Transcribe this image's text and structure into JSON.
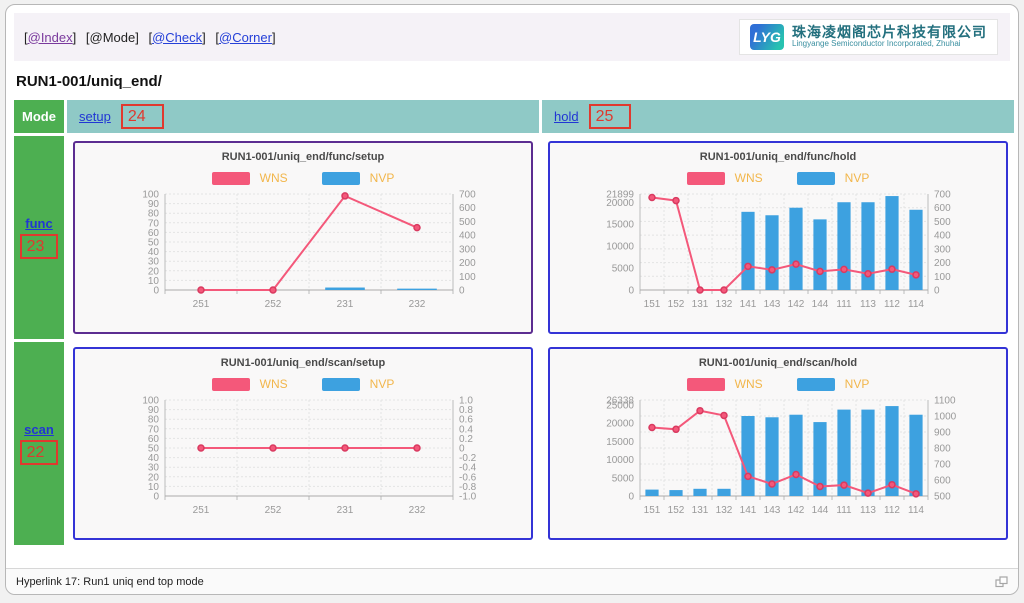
{
  "nav": {
    "bracket_open": "[",
    "bracket_close": "]",
    "items": [
      {
        "label": "@Index",
        "style": "visited"
      },
      {
        "label": "@Mode",
        "style": "plain"
      },
      {
        "label": "@Check",
        "style": "link"
      },
      {
        "label": "@Corner",
        "style": "link"
      }
    ]
  },
  "logo": {
    "abbr": "LYG",
    "company_cn": "珠海凌烟阁芯片科技有限公司",
    "company_en": "Lingyange Semiconductor Incorporated, Zhuhai"
  },
  "page_title": "RUN1-001/uniq_end/",
  "table": {
    "mode_header": "Mode",
    "columns": [
      {
        "label": "setup",
        "badge": "24"
      },
      {
        "label": "hold",
        "badge": "25"
      }
    ],
    "rows": [
      {
        "label": "func",
        "badge": "23"
      },
      {
        "label": "scan",
        "badge": "22"
      }
    ]
  },
  "colors": {
    "wns": "#f4587a",
    "wns_marker_stroke": "#d93a60",
    "nvp": "#3da1e0",
    "legend_text": "#f2b64b",
    "grid_line": "#e3e3e3",
    "axis_line": "#bbbbbb",
    "tick_text": "#999999",
    "border_purple": "#5c2d91",
    "border_blue": "#3434d6",
    "header_teal": "#8fc9c6",
    "cell_green": "#4daf51",
    "annotation_red": "#e0392e"
  },
  "chart_data": [
    {
      "type": "bar+line",
      "title": "RUN1-001/uniq_end/func/setup",
      "border_color": "#5c2d91",
      "categories": [
        "251",
        "252",
        "231",
        "232"
      ],
      "left_axis": {
        "min": 0,
        "max": 100,
        "tick_values": [
          0,
          10,
          20,
          30,
          40,
          50,
          60,
          70,
          80,
          90,
          100
        ],
        "tick_labels": [
          "0",
          "10",
          "20",
          "30",
          "40",
          "50",
          "60",
          "70",
          "80",
          "90",
          "100"
        ]
      },
      "right_axis": {
        "min": 0,
        "max": 700,
        "tick_values": [
          0,
          100,
          200,
          300,
          400,
          500,
          600,
          700
        ],
        "tick_labels": [
          "0",
          "100",
          "200",
          "300",
          "400",
          "500",
          "600",
          "700"
        ]
      },
      "grid_axis": "left",
      "series": [
        {
          "name": "WNS",
          "type": "line",
          "axis": "left",
          "values": [
            0,
            0,
            98,
            65
          ]
        },
        {
          "name": "NVP",
          "type": "bar",
          "axis": "right",
          "values": [
            0,
            0,
            18,
            10
          ]
        }
      ]
    },
    {
      "type": "bar+line",
      "title": "RUN1-001/uniq_end/func/hold",
      "border_color": "#3434d6",
      "categories": [
        "151",
        "152",
        "131",
        "132",
        "141",
        "143",
        "142",
        "144",
        "111",
        "113",
        "112",
        "114"
      ],
      "left_axis": {
        "min": 0,
        "max": 21899,
        "tick_values": [
          0,
          5000,
          10000,
          15000,
          20000,
          21899
        ],
        "tick_labels": [
          "0",
          "5000",
          "10000",
          "15000",
          "20000",
          "21899"
        ]
      },
      "right_axis": {
        "min": 0,
        "max": 700,
        "tick_values": [
          0,
          100,
          200,
          300,
          400,
          500,
          600,
          700
        ],
        "tick_labels": [
          "0",
          "100",
          "200",
          "300",
          "400",
          "500",
          "600",
          "700"
        ]
      },
      "grid_axis": "right",
      "series": [
        {
          "name": "WNS",
          "type": "line",
          "axis": "left",
          "values": [
            21100,
            20400,
            0,
            0,
            5400,
            4600,
            5900,
            4250,
            4700,
            3700,
            4750,
            3450
          ]
        },
        {
          "name": "NVP",
          "type": "bar",
          "axis": "right",
          "values": [
            0,
            0,
            0,
            0,
            570,
            545,
            600,
            515,
            640,
            640,
            685,
            585
          ]
        }
      ]
    },
    {
      "type": "bar+line",
      "title": "RUN1-001/uniq_end/scan/setup",
      "border_color": "#3434d6",
      "categories": [
        "251",
        "252",
        "231",
        "232"
      ],
      "left_axis": {
        "min": 0,
        "max": 100,
        "tick_values": [
          0,
          10,
          20,
          30,
          40,
          50,
          60,
          70,
          80,
          90,
          100
        ],
        "tick_labels": [
          "0",
          "10",
          "20",
          "30",
          "40",
          "50",
          "60",
          "70",
          "80",
          "90",
          "100"
        ]
      },
      "right_axis": {
        "min": -1,
        "max": 1,
        "tick_values": [
          -1,
          -0.8,
          -0.6,
          -0.4,
          -0.2,
          0,
          0.2,
          0.4,
          0.6,
          0.8,
          1
        ],
        "tick_labels": [
          "-1.0",
          "-0.8",
          "-0.6",
          "-0.4",
          "-0.2",
          "0",
          "0.2",
          "0.4",
          "0.6",
          "0.8",
          "1.0"
        ]
      },
      "grid_axis": "left",
      "series": [
        {
          "name": "WNS",
          "type": "line",
          "axis": "right",
          "values": [
            0,
            0,
            0,
            0
          ]
        },
        {
          "name": "NVP",
          "type": "bar",
          "axis": "left",
          "values": [
            0,
            0,
            0,
            0
          ]
        }
      ]
    },
    {
      "type": "bar+line",
      "title": "RUN1-001/uniq_end/scan/hold",
      "border_color": "#3434d6",
      "categories": [
        "151",
        "152",
        "131",
        "132",
        "141",
        "143",
        "142",
        "144",
        "111",
        "113",
        "112",
        "114"
      ],
      "left_axis": {
        "min": 0,
        "max": 26338,
        "tick_values": [
          0,
          5000,
          10000,
          15000,
          20000,
          25000,
          26338
        ],
        "tick_labels": [
          "0",
          "5000",
          "10000",
          "15000",
          "20000",
          "25000",
          "26338"
        ]
      },
      "right_axis": {
        "min": 500,
        "max": 1100,
        "tick_values": [
          500,
          600,
          700,
          800,
          900,
          1000,
          1100
        ],
        "tick_labels": [
          "500",
          "600",
          "700",
          "800",
          "900",
          "1000",
          "1100"
        ]
      },
      "grid_axis": "right",
      "series": [
        {
          "name": "WNS",
          "type": "line",
          "axis": "left",
          "values": [
            18800,
            18300,
            23400,
            22100,
            5400,
            3300,
            5900,
            2600,
            3000,
            800,
            3100,
            600
          ]
        },
        {
          "name": "NVP",
          "type": "bar",
          "axis": "right",
          "values": [
            540,
            537,
            545,
            545,
            1000,
            992,
            1008,
            962,
            1040,
            1040,
            1062,
            1008
          ]
        }
      ]
    }
  ],
  "status_bar": {
    "text": "Hyperlink 17: Run1 uniq end top mode"
  }
}
